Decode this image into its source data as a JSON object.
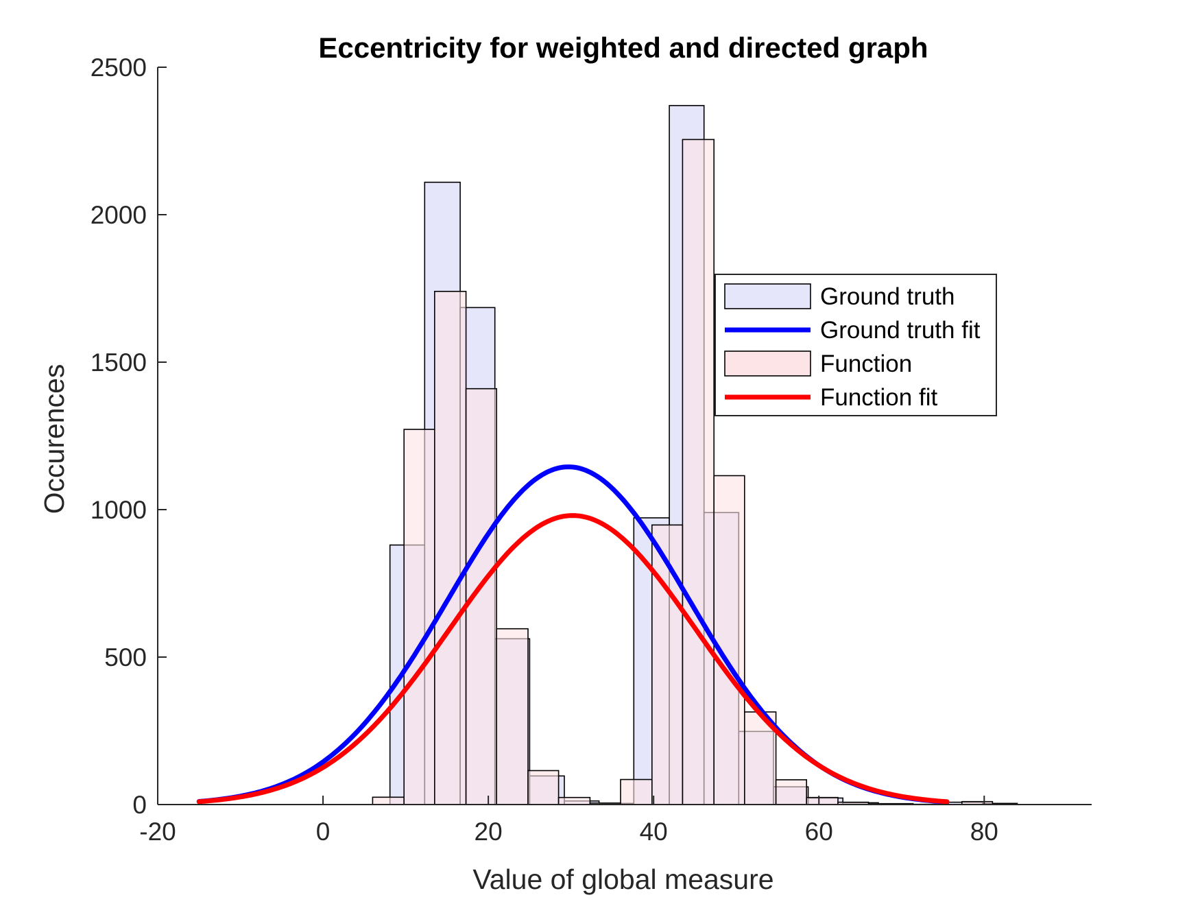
{
  "chart_data": {
    "type": "bar",
    "title": "Eccentricity for weighted and directed graph",
    "xlabel": "Value of global measure",
    "ylabel": "Occurences",
    "xlim": [
      -20,
      93
    ],
    "ylim": [
      0,
      2500
    ],
    "xticks": [
      -20,
      0,
      20,
      40,
      60,
      80
    ],
    "yticks": [
      0,
      500,
      1000,
      1500,
      2000,
      2500
    ],
    "xtick_labels": [
      "-20",
      "0",
      "20",
      "40",
      "60",
      "80"
    ],
    "ytick_labels": [
      "0",
      "500",
      "1000",
      "1500",
      "2000",
      "2500"
    ],
    "grid": false,
    "legend_position": "right",
    "legend": [
      "Ground truth",
      "Ground truth fit",
      "Function",
      "Function fit"
    ],
    "series": [
      {
        "name": "Ground truth",
        "kind": "histogram",
        "color": "#e6e6fa",
        "bins": [
          {
            "x0": 8.1,
            "x1": 12.3,
            "y": 880
          },
          {
            "x0": 12.3,
            "x1": 16.6,
            "y": 2110
          },
          {
            "x0": 16.6,
            "x1": 20.8,
            "y": 1685
          },
          {
            "x0": 20.8,
            "x1": 25.0,
            "y": 562
          },
          {
            "x0": 25.0,
            "x1": 29.2,
            "y": 97
          },
          {
            "x0": 29.2,
            "x1": 33.4,
            "y": 12
          },
          {
            "x0": 33.4,
            "x1": 37.6,
            "y": 4
          },
          {
            "x0": 37.6,
            "x1": 41.9,
            "y": 972
          },
          {
            "x0": 41.9,
            "x1": 46.1,
            "y": 2370
          },
          {
            "x0": 46.1,
            "x1": 50.3,
            "y": 990
          },
          {
            "x0": 50.3,
            "x1": 54.5,
            "y": 248
          },
          {
            "x0": 54.5,
            "x1": 58.7,
            "y": 60
          },
          {
            "x0": 58.7,
            "x1": 62.9,
            "y": 22
          },
          {
            "x0": 62.9,
            "x1": 67.2,
            "y": 6
          },
          {
            "x0": 67.2,
            "x1": 71.4,
            "y": 3
          },
          {
            "x0": 71.4,
            "x1": 75.6,
            "y": 1
          },
          {
            "x0": 75.6,
            "x1": 79.8,
            "y": 8
          },
          {
            "x0": 79.8,
            "x1": 84.0,
            "y": 4
          },
          {
            "x0": 84.0,
            "x1": 88.2,
            "y": 0
          },
          {
            "x0": 88.2,
            "x1": 92.5,
            "y": 0
          }
        ]
      },
      {
        "name": "Function",
        "kind": "histogram",
        "color": "#fde2e4",
        "bins": [
          {
            "x0": 6.0,
            "x1": 9.8,
            "y": 25
          },
          {
            "x0": 9.8,
            "x1": 13.5,
            "y": 1272
          },
          {
            "x0": 13.5,
            "x1": 17.3,
            "y": 1740
          },
          {
            "x0": 17.3,
            "x1": 21.0,
            "y": 1410
          },
          {
            "x0": 21.0,
            "x1": 24.8,
            "y": 596
          },
          {
            "x0": 24.8,
            "x1": 28.5,
            "y": 115
          },
          {
            "x0": 28.5,
            "x1": 32.3,
            "y": 24
          },
          {
            "x0": 32.3,
            "x1": 36.0,
            "y": 5
          },
          {
            "x0": 36.0,
            "x1": 39.8,
            "y": 85
          },
          {
            "x0": 39.8,
            "x1": 43.5,
            "y": 948
          },
          {
            "x0": 43.5,
            "x1": 47.3,
            "y": 2255
          },
          {
            "x0": 47.3,
            "x1": 51.0,
            "y": 1115
          },
          {
            "x0": 51.0,
            "x1": 54.8,
            "y": 314
          },
          {
            "x0": 54.8,
            "x1": 58.5,
            "y": 84
          },
          {
            "x0": 58.5,
            "x1": 62.3,
            "y": 24
          },
          {
            "x0": 62.3,
            "x1": 66.0,
            "y": 8
          },
          {
            "x0": 66.0,
            "x1": 69.8,
            "y": 2
          },
          {
            "x0": 69.8,
            "x1": 73.5,
            "y": 0
          },
          {
            "x0": 73.5,
            "x1": 77.3,
            "y": 0
          },
          {
            "x0": 77.3,
            "x1": 81.0,
            "y": 10
          }
        ]
      },
      {
        "name": "Ground truth fit",
        "kind": "normal_fit",
        "color": "#0000ff",
        "mean": 29.7,
        "sd": 14.6,
        "peak": 1145,
        "x_range": [
          -15,
          75.5
        ]
      },
      {
        "name": "Function fit",
        "kind": "normal_fit",
        "color": "#ff0000",
        "mean": 30.2,
        "sd": 14.9,
        "peak": 980,
        "x_range": [
          -15,
          75.5
        ]
      }
    ]
  }
}
